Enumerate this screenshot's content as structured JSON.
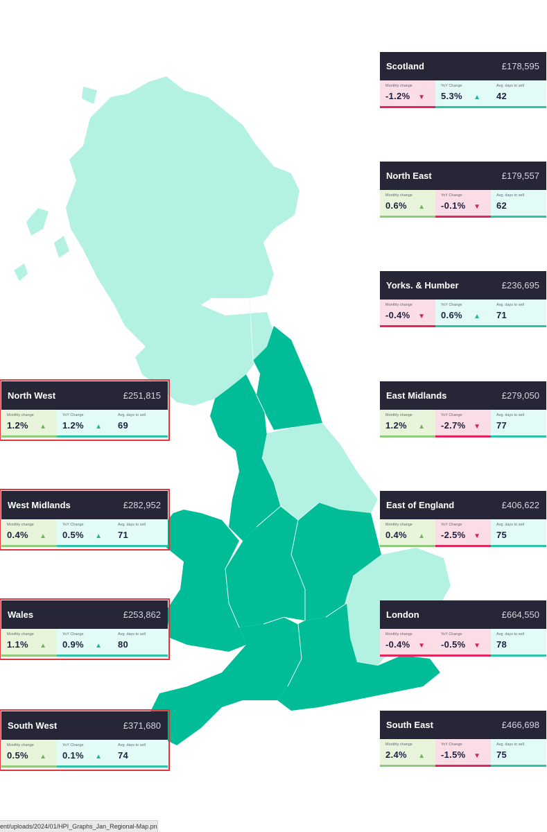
{
  "labels": {
    "monthly": "Monthly change",
    "yoy": "YoY Change",
    "days": "Avg. days to sell"
  },
  "colors": {
    "light_region": "#b3f2e3",
    "dark_region": "#00bd97",
    "header": "#262636",
    "up": "#6fb758",
    "down": "#d81e5b",
    "selection": "#e0363c"
  },
  "regions": [
    {
      "name": "Scotland",
      "price": "£178,595",
      "monthly": "-1.2%",
      "monthly_dir": "down",
      "yoy": "5.3%",
      "yoy_dir": "up",
      "days": "42"
    },
    {
      "name": "North East",
      "price": "£179,557",
      "monthly": "0.6%",
      "monthly_dir": "up",
      "yoy": "-0.1%",
      "yoy_dir": "down",
      "days": "62"
    },
    {
      "name": "Yorks. & Humber",
      "price": "£236,695",
      "monthly": "-0.4%",
      "monthly_dir": "down",
      "yoy": "0.6%",
      "yoy_dir": "up",
      "days": "71"
    },
    {
      "name": "East Midlands",
      "price": "£279,050",
      "monthly": "1.2%",
      "monthly_dir": "up",
      "yoy": "-2.7%",
      "yoy_dir": "down",
      "days": "77"
    },
    {
      "name": "East of England",
      "price": "£406,622",
      "monthly": "0.4%",
      "monthly_dir": "up",
      "yoy": "-2.5%",
      "yoy_dir": "down",
      "days": "75"
    },
    {
      "name": "London",
      "price": "£664,550",
      "monthly": "-0.4%",
      "monthly_dir": "down",
      "yoy": "-0.5%",
      "yoy_dir": "down",
      "days": "78"
    },
    {
      "name": "South East",
      "price": "£466,698",
      "monthly": "2.4%",
      "monthly_dir": "up",
      "yoy": "-1.5%",
      "yoy_dir": "down",
      "days": "75"
    },
    {
      "name": "North West",
      "price": "£251,815",
      "monthly": "1.2%",
      "monthly_dir": "up",
      "yoy": "1.2%",
      "yoy_dir": "up",
      "days": "69"
    },
    {
      "name": "West Midlands",
      "price": "£282,952",
      "monthly": "0.4%",
      "monthly_dir": "up",
      "yoy": "0.5%",
      "yoy_dir": "up",
      "days": "71"
    },
    {
      "name": "Wales",
      "price": "£253,862",
      "monthly": "1.1%",
      "monthly_dir": "up",
      "yoy": "0.9%",
      "yoy_dir": "up",
      "days": "80"
    },
    {
      "name": "South West",
      "price": "£371,680",
      "monthly": "0.5%",
      "monthly_dir": "up",
      "yoy": "0.1%",
      "yoy_dir": "up",
      "days": "74"
    }
  ],
  "status_url": "ent/uploads/2024/01/HPI_Graphs_Jan_Regional-Map.png"
}
